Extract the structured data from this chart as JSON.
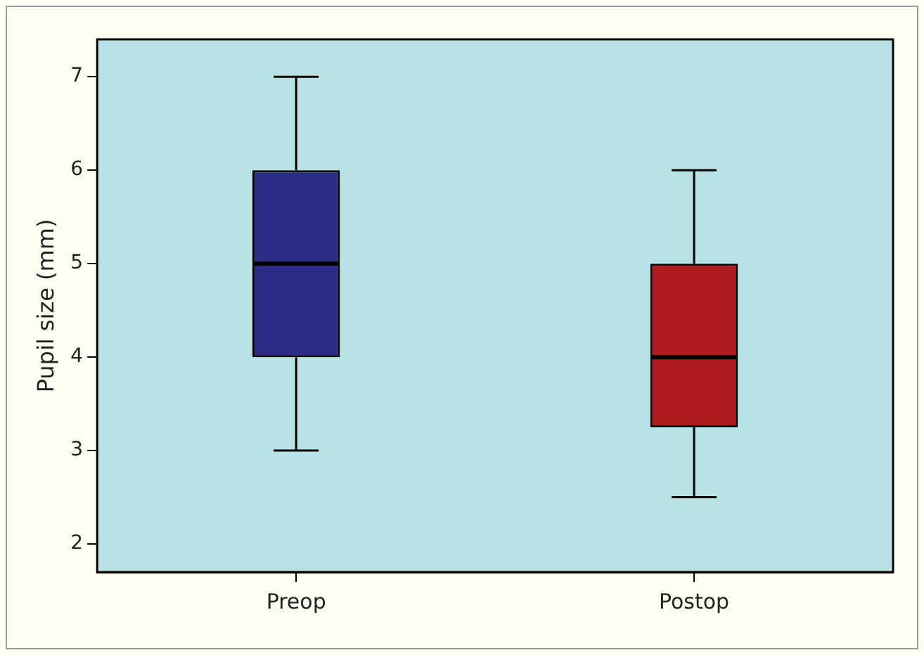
{
  "chart_data": {
    "type": "box",
    "ylabel": "Pupil size (mm)",
    "categories": [
      "Preop",
      "Postop"
    ],
    "boxes": [
      {
        "low": 3,
        "q1": 4,
        "median": 5,
        "q3": 6,
        "high": 7
      },
      {
        "low": 2.5,
        "q1": 3.25,
        "median": 4,
        "q3": 5,
        "high": 6
      }
    ],
    "colors": [
      "#2b2e84",
      "#b01c1e"
    ],
    "ylim": [
      1.7,
      7.4
    ],
    "yticks": [
      2,
      3,
      4,
      5,
      6,
      7
    ],
    "legend": false
  }
}
